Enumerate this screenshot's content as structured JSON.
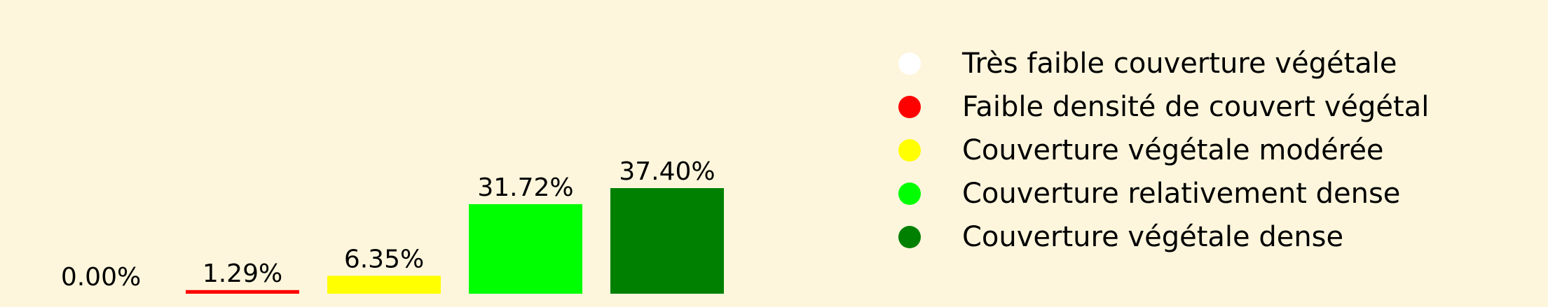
{
  "chart_data": {
    "type": "bar",
    "categories": [
      "Très faible couverture végétale",
      "Faible densité de couvert végétal",
      "Couverture végétale modérée",
      "Couverture relativement dense",
      "Couverture végétale dense"
    ],
    "values": [
      0.0,
      1.29,
      6.35,
      31.72,
      37.4
    ],
    "value_labels": [
      "0.00%",
      "1.29%",
      "6.35%",
      "31.72%",
      "37.40%"
    ],
    "colors": [
      "#ffffff",
      "#ff0000",
      "#ffff00",
      "#00ff00",
      "#008000"
    ],
    "ylim": [
      0,
      37.4
    ],
    "grid": false,
    "legend_position": "right",
    "background_color": "#fdf6dc"
  }
}
